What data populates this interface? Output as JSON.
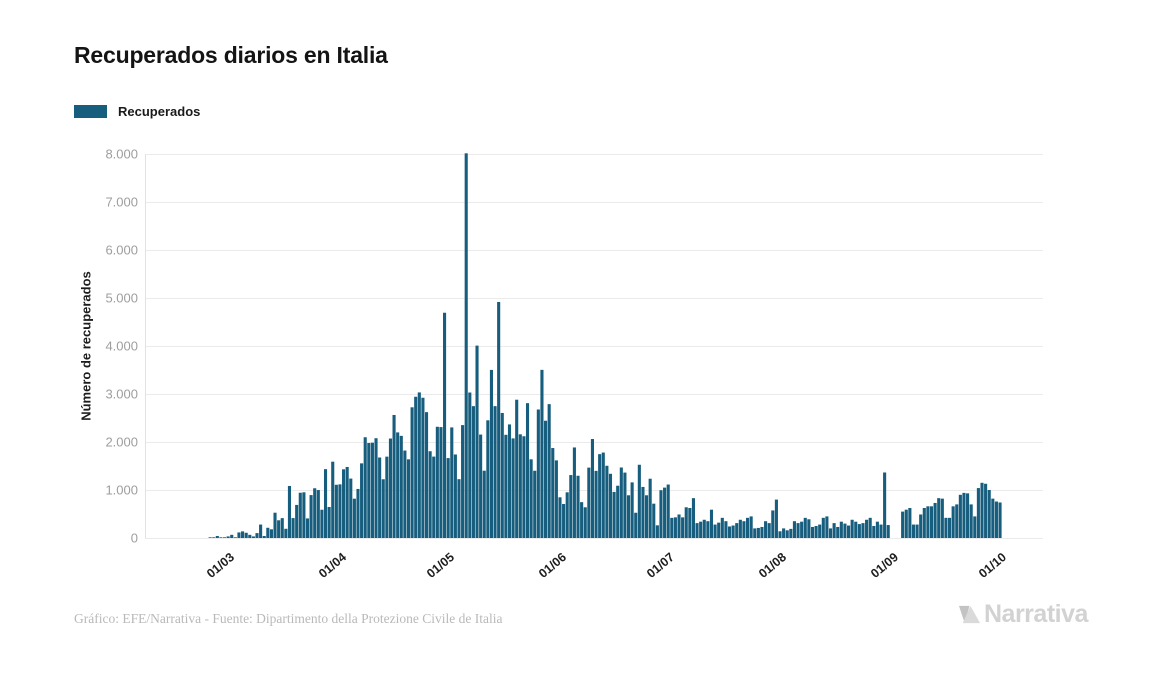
{
  "page": {
    "title": "Recuperados diarios en Italia",
    "footer_credit": "Gráfico: EFE/Narrativa - Fuente: Dipartimento della Protezione Civile de Italia",
    "brand": "Narrativa"
  },
  "legend": {
    "label": "Recuperados",
    "color": "#175d7d"
  },
  "colors": {
    "bar": "#175d7d",
    "grid": "#ebebeb",
    "axis": "#e2e2e2",
    "y_tick_text": "#9e9e9e",
    "x_tick_text": "#1d1d1d",
    "title_text": "#141414",
    "footer_text": "#b9b9b9",
    "brand_text": "#d2d2d2"
  },
  "chart_data": {
    "type": "bar",
    "title": "Recuperados diarios en Italia",
    "series_name": "Recuperados",
    "xlabel": "",
    "ylabel": "Número de recuperados",
    "ylim": [
      0,
      8000
    ],
    "grid": true,
    "legend_position": "top-left",
    "bar_color": "#175d7d",
    "start_date": "24/02",
    "end_date": "01/10",
    "y_tick_values": [
      0,
      1000,
      2000,
      3000,
      4000,
      5000,
      6000,
      7000,
      8000
    ],
    "y_tick_labels": [
      "0",
      "1.000",
      "2.000",
      "3.000",
      "4.000",
      "5.000",
      "6.000",
      "7.000",
      "8.000"
    ],
    "x_tick_labels": [
      "01/03",
      "01/04",
      "01/05",
      "01/06",
      "01/07",
      "01/08",
      "01/09",
      "01/10"
    ],
    "x_tick_day_index": [
      6,
      37,
      67,
      98,
      128,
      159,
      190,
      220
    ],
    "values": [
      0,
      1,
      2,
      42,
      1,
      4,
      33,
      66,
      11,
      116,
      138,
      109,
      66,
      33,
      102,
      280,
      41,
      213,
      181,
      527,
      369,
      414,
      192,
      1084,
      415,
      689,
      943,
      952,
      408,
      894,
      1036,
      999,
      589,
      1434,
      646,
      1590,
      1109,
      1118,
      1431,
      1480,
      1238,
      819,
      1022,
      1555,
      2099,
      1979,
      1985,
      2079,
      1677,
      1224,
      1695,
      2072,
      2563,
      2200,
      2128,
      1822,
      1639,
      2723,
      2943,
      3033,
      2922,
      2622,
      1808,
      1696,
      2317,
      2311,
      4693,
      1665,
      2304,
      1740,
      1225,
      2352,
      8014,
      3031,
      2747,
      4008,
      2155,
      1402,
      2452,
      3502,
      2747,
      4917,
      2605,
      2150,
      2366,
      2075,
      2881,
      2160,
      2120,
      2809,
      1639,
      1401,
      2677,
      3503,
      2443,
      2789,
      1874,
      1617,
      848,
      708,
      952,
      1311,
      1886,
      1297,
      747,
      640,
      1466,
      2062,
      1399,
      1747,
      1780,
      1505,
      1338,
      960,
      1089,
      1469,
      1363,
      890,
      1159,
      526,
      1526,
      1064,
      890,
      1235,
      715,
      264,
      996,
      1050,
      1114,
      420,
      430,
      490,
      430,
      640,
      625,
      830,
      310,
      340,
      380,
      350,
      590,
      280,
      320,
      420,
      350,
      240,
      260,
      310,
      380,
      350,
      420,
      450,
      200,
      210,
      230,
      350,
      310,
      574,
      800,
      140,
      200,
      160,
      190,
      350,
      310,
      340,
      420,
      390,
      230,
      250,
      280,
      420,
      450,
      200,
      310,
      230,
      340,
      300,
      260,
      380,
      340,
      290,
      310,
      380,
      420,
      250,
      340,
      280,
      1365,
      270,
      0,
      0,
      0,
      550,
      590,
      625,
      280,
      280,
      490,
      625,
      660,
      660,
      730,
      830,
      820,
      420,
      420,
      660,
      700,
      900,
      940,
      930,
      700,
      450,
      1040,
      1150,
      1130,
      1000,
      820,
      760,
      740
    ]
  }
}
